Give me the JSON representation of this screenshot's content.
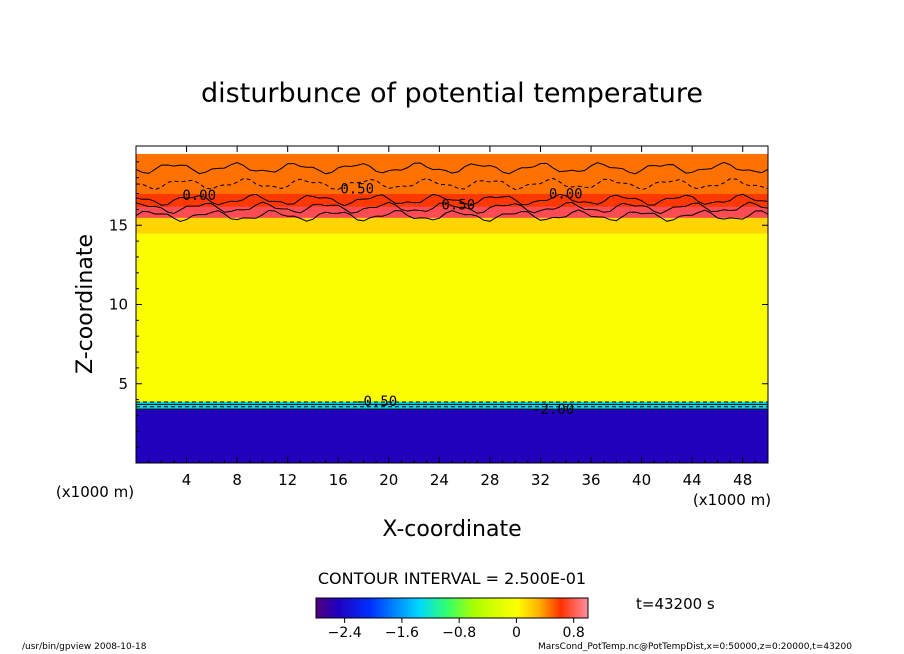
{
  "chart_data": {
    "type": "heatmap",
    "title": "disturbunce of potential temperature",
    "xlabel": "X-coordinate",
    "ylabel": "Z-coordinate",
    "x_unit": "(x1000 m)",
    "y_unit": "(x1000 m)",
    "xlim": [
      0,
      50
    ],
    "ylim": [
      0,
      20
    ],
    "x_ticks": [
      4,
      8,
      12,
      16,
      20,
      24,
      28,
      32,
      36,
      40,
      44,
      48
    ],
    "y_ticks": [
      5,
      10,
      15
    ],
    "contour_interval_text": "CONTOUR INTERVAL = 2.500E-01",
    "time_text": "t=43200 s",
    "colorbar": {
      "range": [
        -2.8,
        1.0
      ],
      "tick_values": [
        -2.4,
        -1.6,
        -0.8,
        0,
        0.8
      ],
      "tick_labels": [
        "−2.4",
        "−1.6",
        "−0.8",
        "0",
        "0.8"
      ]
    },
    "layers": [
      {
        "z_range": [
          0,
          3.4
        ],
        "value": -2.5
      },
      {
        "z_range": [
          3.4,
          3.9
        ],
        "value": -1.5
      },
      {
        "z_range": [
          3.9,
          14.5
        ],
        "value": -0.3
      },
      {
        "z_range": [
          14.5,
          15.5
        ],
        "value": -0.1
      },
      {
        "z_range": [
          15.5,
          16.2
        ],
        "value": 0.85
      },
      {
        "z_range": [
          16.2,
          17.0
        ],
        "value": 0.5
      },
      {
        "z_range": [
          17.0,
          19.5
        ],
        "value": 0.3
      }
    ],
    "contour_labels": [
      {
        "text": "0.00",
        "x": 5,
        "z": 16.6
      },
      {
        "text": "0.00",
        "x": 34,
        "z": 16.7
      },
      {
        "text": "0.50",
        "x": 17.5,
        "z": 17.0
      },
      {
        "text": "0.50",
        "x": 25.5,
        "z": 16.0
      },
      {
        "text": "-0.50",
        "x": 19,
        "z": 3.6
      },
      {
        "text": "-2.00",
        "x": 33,
        "z": 3.1
      }
    ]
  },
  "footer": {
    "left": "/usr/bin/gpview   2008-10-18",
    "right": "MarsCond_PotTemp.nc@PotTempDist,x=0:50000,z=0:20000,t=43200"
  },
  "colors": {
    "stops": [
      "#50007a",
      "#2000c0",
      "#0030ff",
      "#0090ff",
      "#00d8ff",
      "#30ff70",
      "#a8ff00",
      "#d8ff00",
      "#ffff00",
      "#ffb000",
      "#ff6000",
      "#ff0000",
      "#ff90a0"
    ]
  }
}
